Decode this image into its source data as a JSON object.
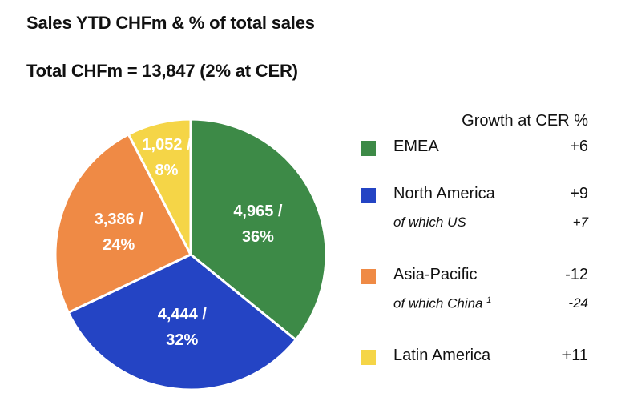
{
  "title": "Sales YTD CHFm & % of total sales",
  "subtitle": "Total CHFm = 13,847 (2% at CER)",
  "chart_data": {
    "type": "pie",
    "title": "Sales YTD CHFm & % of total sales",
    "total_label": "Total CHFm = 13,847 (2% at CER)",
    "slices": [
      {
        "name": "EMEA",
        "value": 4965,
        "percent": 36,
        "label_value": "4,965 /",
        "label_pct": "36%",
        "color": "#3d8a47"
      },
      {
        "name": "North America",
        "value": 4444,
        "percent": 32,
        "label_value": "4,444 /",
        "label_pct": "32%",
        "color": "#2444c4"
      },
      {
        "name": "Asia-Pacific",
        "value": 3386,
        "percent": 24,
        "label_value": "3,386 /",
        "label_pct": "24%",
        "color": "#ef8a45"
      },
      {
        "name": "Latin America",
        "value": 1052,
        "percent": 8,
        "label_value": "1,052 /",
        "label_pct": "8%",
        "color": "#f5d547"
      }
    ]
  },
  "legend": {
    "header": "Growth at CER %",
    "items": [
      {
        "label": "EMEA",
        "growth": "+6",
        "color": "#3d8a47"
      },
      {
        "label": "North America",
        "growth": "+9",
        "color": "#2444c4",
        "sub": {
          "label": "of which US",
          "sup": "",
          "growth": "+7"
        }
      },
      {
        "label": "Asia-Pacific",
        "growth": "-12",
        "color": "#ef8a45",
        "sub": {
          "label": "of which China",
          "sup": "1",
          "growth": "-24"
        }
      },
      {
        "label": "Latin America",
        "growth": "+11",
        "color": "#f5d547"
      }
    ]
  }
}
